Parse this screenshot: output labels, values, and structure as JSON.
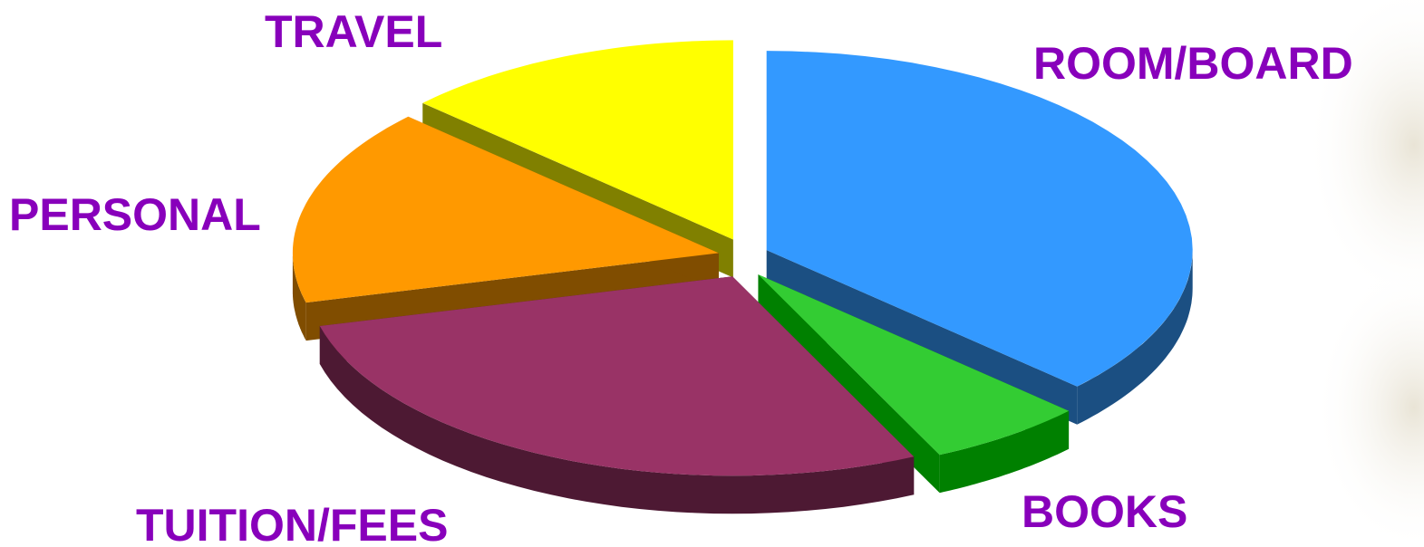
{
  "chart_data": {
    "type": "pie",
    "style": "3d-exploded",
    "title": "",
    "label_color": "#8800bb",
    "slices": [
      {
        "label": "ROOM/BOARD",
        "value": 37,
        "color": "#3399ff",
        "side_color": "#1b4f82"
      },
      {
        "label": "BOOKS",
        "value": 6,
        "color": "#33cc33",
        "side_color": "#008000"
      },
      {
        "label": "TUITION/FEES",
        "value": 28,
        "color": "#993366",
        "side_color": "#4d1933"
      },
      {
        "label": "PERSONAL",
        "value": 16,
        "color": "#ff9900",
        "side_color": "#804d00"
      },
      {
        "label": "TRAVEL",
        "value": 13,
        "color": "#ffff00",
        "side_color": "#808000"
      }
    ]
  }
}
